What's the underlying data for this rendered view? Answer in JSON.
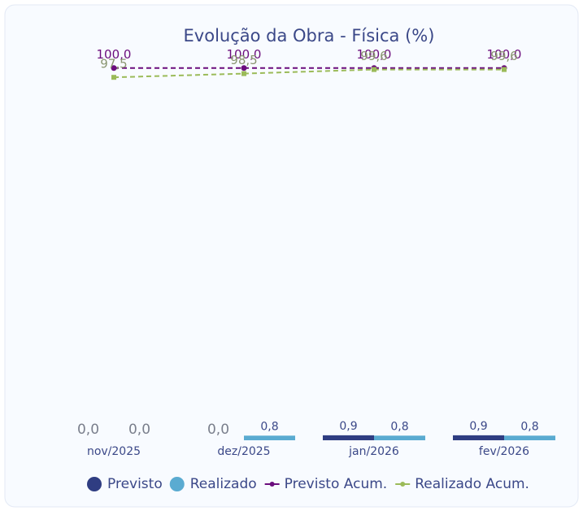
{
  "chart_data": {
    "type": "combo",
    "title": "Evolução da Obra - Física (%)",
    "categories": [
      "nov/2025",
      "dez/2025",
      "jan/2026",
      "fev/2026"
    ],
    "ylim": [
      0,
      103
    ],
    "series": [
      {
        "name": "Previsto",
        "kind": "bar",
        "color": "#2f3d82",
        "values": [
          0,
          0,
          0.9,
          0.9
        ],
        "value_labels": [
          "0,0",
          "0,0",
          "0,9",
          "0,9"
        ]
      },
      {
        "name": "Realizado",
        "kind": "bar",
        "color": "#5aabd1",
        "values": [
          0,
          0.8,
          0.8,
          0.8
        ],
        "value_labels": [
          "0,0",
          "0,8",
          "0,8",
          "0,8"
        ]
      },
      {
        "name": "Previsto Acum.",
        "kind": "line",
        "color": "#6b0d7d",
        "values": [
          100,
          100,
          100,
          100
        ],
        "value_labels": [
          "100,0",
          "100,0",
          "100,0",
          "100,0"
        ]
      },
      {
        "name": "Realizado Acum.",
        "kind": "line",
        "color": "#9bbb59",
        "values": [
          97.5,
          98.5,
          99.6,
          99.6
        ],
        "value_labels": [
          "97,5",
          "98,5",
          "99,6",
          "99,6"
        ]
      }
    ]
  }
}
